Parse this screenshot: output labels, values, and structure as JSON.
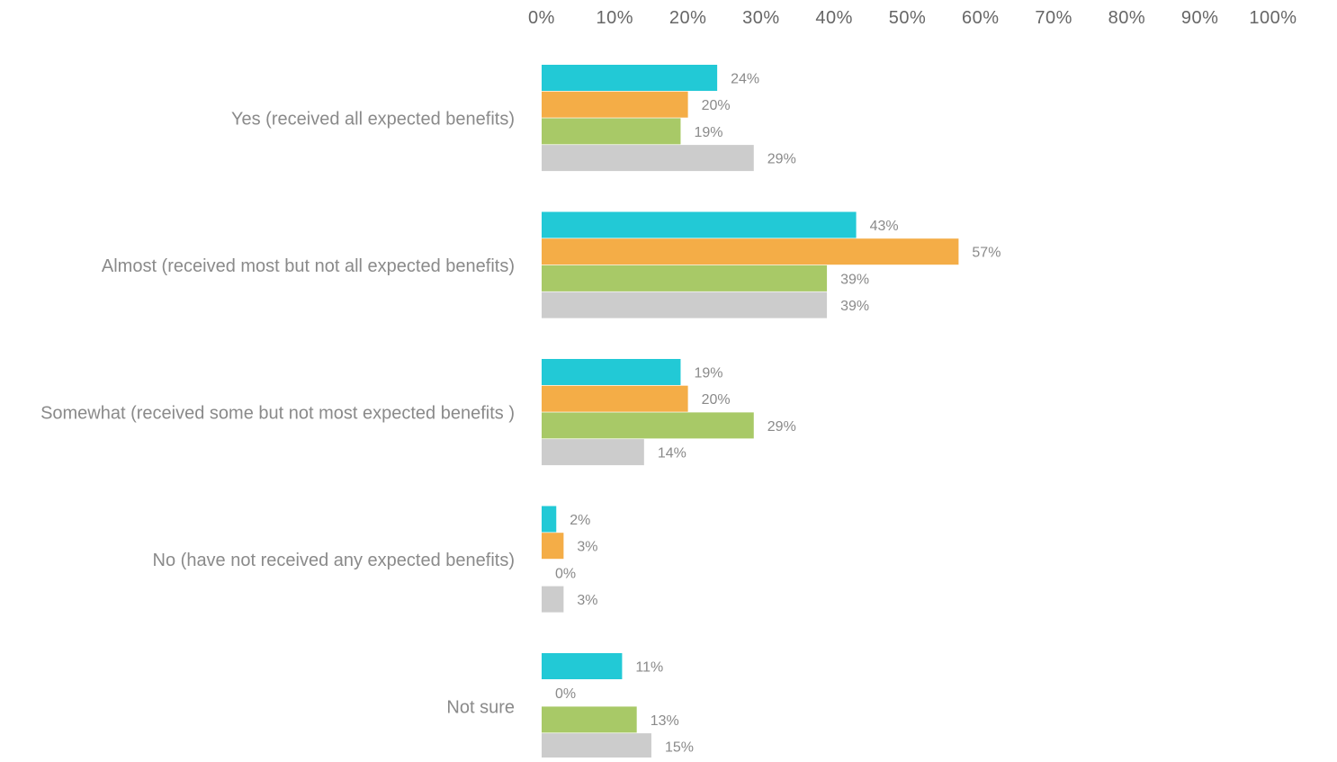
{
  "chart_data": {
    "type": "bar",
    "orientation": "horizontal",
    "xlim": [
      0,
      100
    ],
    "x_ticks": [
      "0%",
      "10%",
      "20%",
      "30%",
      "40%",
      "50%",
      "60%",
      "70%",
      "80%",
      "90%",
      "100%"
    ],
    "x_tick_values": [
      0,
      10,
      20,
      30,
      40,
      50,
      60,
      70,
      80,
      90,
      100
    ],
    "x_axis_position": "top",
    "grid": false,
    "legend": "none",
    "categories": [
      "Yes (received all expected benefits)",
      "Almost (received most but not all expected benefits)",
      "Somewhat (received some but not most expected benefits )",
      "No (have not received any expected benefits)",
      "Not sure"
    ],
    "series": [
      {
        "color": "#22c9d6",
        "values": [
          24,
          43,
          19,
          2,
          11
        ],
        "labels": [
          "24%",
          "43%",
          "19%",
          "2%",
          "11%"
        ]
      },
      {
        "color": "#f4ad47",
        "values": [
          20,
          57,
          20,
          3,
          0
        ],
        "labels": [
          "20%",
          "57%",
          "20%",
          "3%",
          "0%"
        ]
      },
      {
        "color": "#a8c967",
        "values": [
          19,
          39,
          29,
          0,
          13
        ],
        "labels": [
          "19%",
          "39%",
          "29%",
          "0%",
          "13%"
        ]
      },
      {
        "color": "#cccccc",
        "values": [
          29,
          39,
          14,
          3,
          15
        ],
        "labels": [
          "29%",
          "39%",
          "14%",
          "3%",
          "15%"
        ]
      }
    ]
  }
}
